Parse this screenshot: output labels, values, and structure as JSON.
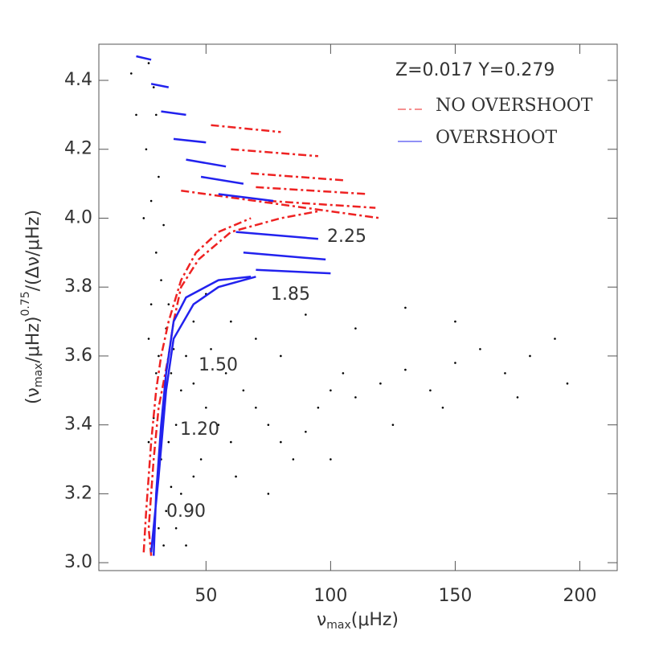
{
  "chart_data": {
    "type": "line",
    "annotations": [
      "Z=0.017 Y=0.279",
      "2.25",
      "1.85",
      "1.50",
      "1.20",
      "0.90"
    ],
    "xlabel_parts": [
      "ν",
      "max",
      "(μHz)"
    ],
    "ylabel_parts": [
      "(ν",
      "max",
      "/μHz)",
      "0.75",
      "/(Δν/μHz)"
    ],
    "xlim": [
      7,
      215
    ],
    "xticks": [
      50,
      100,
      150,
      200
    ],
    "ylim": [
      2.977,
      4.505
    ],
    "yticks": [
      {
        "value": 3,
        "label": "3.0"
      },
      3.2,
      3.4,
      3.6,
      3.8,
      {
        "value": 4,
        "label": "4.0"
      },
      4.2,
      4.4
    ],
    "series": [
      {
        "name": "NO OVERSHOOT",
        "color": "#ee2222",
        "x": [
          28,
          27,
          29,
          31,
          35,
          37,
          40,
          47,
          60,
          80,
          95,
          null,
          25,
          26,
          28,
          30,
          32,
          35,
          40,
          46,
          55,
          68,
          null,
          52,
          80,
          null,
          60,
          95,
          null,
          68,
          105,
          null,
          70,
          115,
          null,
          75,
          118,
          null,
          40,
          120
        ],
        "y": [
          3.02,
          3.1,
          3.3,
          3.45,
          3.6,
          3.7,
          3.8,
          3.88,
          3.96,
          4.0,
          4.02,
          null,
          3.03,
          3.15,
          3.35,
          3.5,
          3.6,
          3.7,
          3.82,
          3.9,
          3.96,
          4.0,
          null,
          4.27,
          4.25,
          null,
          4.2,
          4.18,
          null,
          4.13,
          4.11,
          null,
          4.09,
          4.07,
          null,
          4.05,
          4.03,
          null,
          4.08,
          4.0
        ]
      },
      {
        "name": "OVERSHOOT",
        "color": "#2222ee",
        "x": [
          29,
          30,
          32,
          34,
          37,
          42,
          55,
          68,
          null,
          28,
          31,
          34,
          37,
          45,
          55,
          70,
          null,
          22,
          28,
          null,
          28,
          35,
          null,
          32,
          42,
          null,
          37,
          50,
          null,
          42,
          58,
          null,
          48,
          65,
          null,
          55,
          77,
          null,
          62,
          95,
          null,
          65,
          98,
          null,
          70,
          100
        ],
        "y": [
          3.02,
          3.2,
          3.4,
          3.55,
          3.7,
          3.77,
          3.82,
          3.83,
          null,
          3.03,
          3.25,
          3.5,
          3.65,
          3.75,
          3.8,
          3.83,
          null,
          4.47,
          4.46,
          null,
          4.39,
          4.38,
          null,
          4.31,
          4.3,
          null,
          4.23,
          4.22,
          null,
          4.17,
          4.15,
          null,
          4.12,
          4.1,
          null,
          4.07,
          4.05,
          null,
          3.96,
          3.94,
          null,
          3.9,
          3.88,
          null,
          3.85,
          3.84
        ]
      }
    ],
    "points": {
      "color": "#000000",
      "x": [
        27,
        29,
        30,
        26,
        31,
        28,
        33,
        30,
        32,
        35,
        34,
        37,
        36,
        40,
        33,
        38,
        35,
        32,
        36,
        34,
        31,
        33,
        30,
        42,
        45,
        50,
        55,
        60,
        48,
        52,
        58,
        65,
        70,
        75,
        80,
        85,
        90,
        95,
        100,
        105,
        110,
        120,
        130,
        140,
        150,
        160,
        170,
        180,
        190,
        60,
        70,
        80,
        90,
        110,
        130,
        150,
        45,
        40,
        38,
        42,
        25,
        22,
        20,
        45,
        50,
        62,
        75,
        100,
        125,
        145,
        175,
        195,
        28,
        27,
        31,
        29,
        27
      ],
      "y": [
        4.45,
        4.38,
        4.3,
        4.2,
        4.12,
        4.05,
        3.98,
        3.9,
        3.82,
        3.75,
        3.68,
        3.62,
        3.55,
        3.5,
        3.45,
        3.4,
        3.35,
        3.3,
        3.22,
        3.15,
        3.1,
        3.05,
        3.55,
        3.6,
        3.52,
        3.45,
        3.4,
        3.35,
        3.3,
        3.62,
        3.55,
        3.5,
        3.45,
        3.4,
        3.35,
        3.3,
        3.38,
        3.45,
        3.5,
        3.55,
        3.48,
        3.52,
        3.56,
        3.5,
        3.58,
        3.62,
        3.55,
        3.6,
        3.65,
        3.7,
        3.65,
        3.6,
        3.72,
        3.68,
        3.74,
        3.7,
        3.25,
        3.2,
        3.1,
        3.05,
        4.0,
        4.3,
        4.42,
        3.7,
        3.78,
        3.25,
        3.2,
        3.3,
        3.4,
        3.45,
        3.48,
        3.52,
        3.75,
        3.65,
        3.6,
        3.42,
        3.35
      ]
    }
  }
}
